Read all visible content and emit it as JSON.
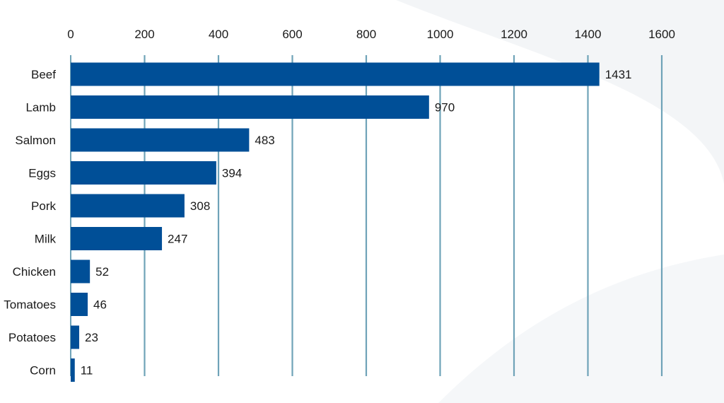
{
  "chart_data": {
    "type": "bar",
    "orientation": "horizontal",
    "title": "",
    "xlabel": "",
    "ylabel": "",
    "xlim": [
      0,
      1600
    ],
    "x_ticks": [
      0,
      200,
      400,
      600,
      800,
      1000,
      1200,
      1400,
      1600
    ],
    "x_axis_position": "top",
    "grid": true,
    "legend": "none",
    "categories": [
      "Beef",
      "Lamb",
      "Salmon",
      "Eggs",
      "Pork",
      "Milk",
      "Chicken",
      "Tomatoes",
      "Potatoes",
      "Corn"
    ],
    "values": [
      1431,
      970,
      483,
      394,
      308,
      247,
      52,
      46,
      23,
      11
    ],
    "bar_color": "#004f97",
    "grid_color": "#6fa3b8",
    "background_color": "#ffffff"
  }
}
